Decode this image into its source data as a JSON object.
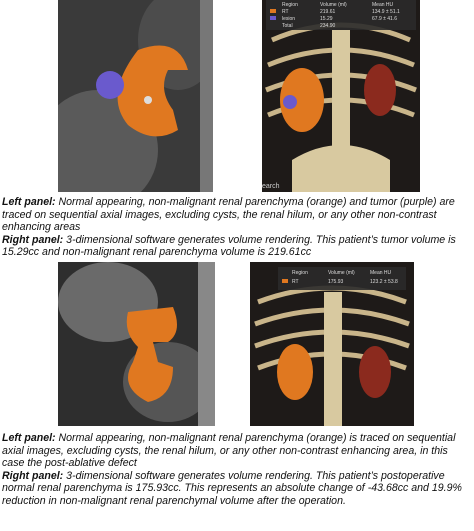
{
  "figures": [
    {
      "right_image": {
        "overlay": {
          "header": [
            "Region",
            "Volume (ml)",
            "Mean HU"
          ],
          "rows": [
            [
              "RT",
              "219.61",
              "134.9 ± 51.1"
            ],
            [
              "lesion",
              "15.29",
              "67.9 ± 41.6"
            ],
            [
              "Total",
              "234.90"
            ]
          ]
        },
        "corner_text": "earch"
      },
      "caption": [
        {
          "label": "Left panel:",
          "text": "Normal appearing, non-malignant renal parenchyma (orange) and tumor (purple) are traced on sequential axial images, excluding cysts, the renal hilum, or any other non-contrast enhancing areas"
        },
        {
          "label": "Right panel:",
          "text": "3-dimensional software generates volume rendering. This patient’s tumor volume is 15.29cc and non-malignant renal parenchyma volume is 219.61cc"
        }
      ]
    },
    {
      "right_image": {
        "overlay": {
          "header": [
            "Region",
            "Volume (ml)",
            "Mean HU"
          ],
          "rows": [
            [
              "RT",
              "175.93",
              "123.2 ± 53.8"
            ]
          ]
        }
      },
      "caption": [
        {
          "label": "Left panel:",
          "text": "Normal appearing, non-malignant renal parenchyma (orange) is traced on sequential axial images, excluding cysts, the renal hilum, or any other non-contrast enhancing area, in this case the post-ablative defect"
        },
        {
          "label": "Right panel:",
          "text": "3-dimensional software generates volume rendering. This patient’s postoperative normal renal parenchyma is 175.93cc. This represents an absolute change of -43.68cc and 19.9% reduction in non-malignant renal parenchymal volume after the operation."
        }
      ]
    }
  ]
}
